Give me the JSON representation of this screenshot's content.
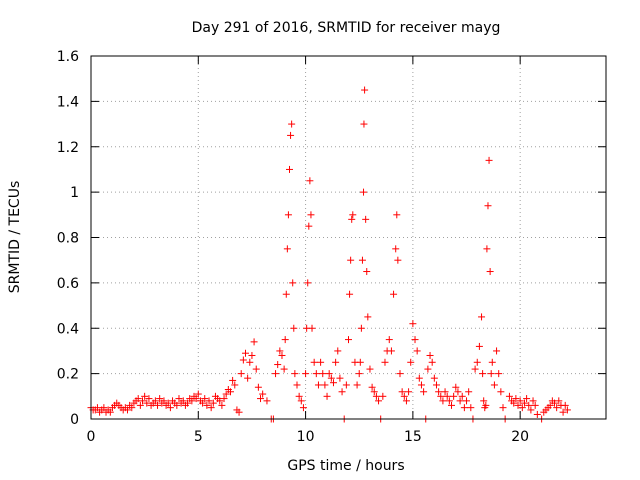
{
  "chart_data": {
    "type": "scatter",
    "title": "Day 291 of 2016, SRMTID for receiver mayg",
    "xlabel": "GPS time / hours",
    "ylabel": "SRMTID / TECUs",
    "xlim": [
      0,
      24
    ],
    "ylim": [
      0,
      1.6
    ],
    "xticks": [
      0,
      5,
      10,
      15,
      20
    ],
    "yticks": [
      0,
      0.2,
      0.4,
      0.6,
      0.8,
      1,
      1.2,
      1.4,
      1.6
    ],
    "xtick_labels": [
      "0",
      "5",
      "10",
      "15",
      "20"
    ],
    "ytick_labels": [
      "0",
      "0.2",
      "0.4",
      "0.6",
      "0.8",
      "1",
      "1.2",
      "1.4",
      "1.6"
    ],
    "grid": true,
    "marker": "+",
    "marker_color": "#ff0000",
    "series": [
      {
        "name": "SRMTID",
        "points": [
          [
            0.0,
            0.05
          ],
          [
            0.1,
            0.04
          ],
          [
            0.2,
            0.04
          ],
          [
            0.3,
            0.05
          ],
          [
            0.4,
            0.03
          ],
          [
            0.5,
            0.04
          ],
          [
            0.6,
            0.05
          ],
          [
            0.7,
            0.03
          ],
          [
            0.8,
            0.04
          ],
          [
            0.9,
            0.03
          ],
          [
            1.0,
            0.05
          ],
          [
            1.1,
            0.06
          ],
          [
            1.2,
            0.07
          ],
          [
            1.3,
            0.06
          ],
          [
            1.4,
            0.05
          ],
          [
            1.5,
            0.04
          ],
          [
            1.6,
            0.05
          ],
          [
            1.7,
            0.04
          ],
          [
            1.8,
            0.06
          ],
          [
            1.9,
            0.05
          ],
          [
            2.0,
            0.07
          ],
          [
            2.1,
            0.08
          ],
          [
            2.2,
            0.09
          ],
          [
            2.3,
            0.06
          ],
          [
            2.4,
            0.08
          ],
          [
            2.5,
            0.1
          ],
          [
            2.6,
            0.07
          ],
          [
            2.7,
            0.09
          ],
          [
            2.8,
            0.06
          ],
          [
            2.9,
            0.07
          ],
          [
            3.0,
            0.08
          ],
          [
            3.1,
            0.06
          ],
          [
            3.2,
            0.09
          ],
          [
            3.3,
            0.07
          ],
          [
            3.4,
            0.08
          ],
          [
            3.5,
            0.06
          ],
          [
            3.6,
            0.07
          ],
          [
            3.7,
            0.05
          ],
          [
            3.8,
            0.08
          ],
          [
            3.9,
            0.07
          ],
          [
            4.0,
            0.06
          ],
          [
            4.1,
            0.09
          ],
          [
            4.2,
            0.07
          ],
          [
            4.3,
            0.08
          ],
          [
            4.4,
            0.06
          ],
          [
            4.5,
            0.07
          ],
          [
            4.6,
            0.09
          ],
          [
            4.7,
            0.08
          ],
          [
            4.8,
            0.1
          ],
          [
            4.9,
            0.09
          ],
          [
            5.0,
            0.11
          ],
          [
            5.1,
            0.08
          ],
          [
            5.2,
            0.07
          ],
          [
            5.3,
            0.09
          ],
          [
            5.4,
            0.06
          ],
          [
            5.5,
            0.08
          ],
          [
            5.6,
            0.05
          ],
          [
            5.7,
            0.07
          ],
          [
            5.8,
            0.1
          ],
          [
            5.9,
            0.09
          ],
          [
            6.0,
            0.08
          ],
          [
            6.1,
            0.06
          ],
          [
            6.2,
            0.09
          ],
          [
            6.3,
            0.11
          ],
          [
            6.4,
            0.13
          ],
          [
            6.5,
            0.12
          ],
          [
            6.6,
            0.17
          ],
          [
            6.7,
            0.15
          ],
          [
            6.8,
            0.04
          ],
          [
            6.9,
            0.03
          ],
          [
            7.0,
            0.2
          ],
          [
            7.1,
            0.26
          ],
          [
            7.2,
            0.29
          ],
          [
            7.3,
            0.18
          ],
          [
            7.4,
            0.25
          ],
          [
            7.5,
            0.28
          ],
          [
            7.6,
            0.34
          ],
          [
            7.7,
            0.22
          ],
          [
            7.8,
            0.14
          ],
          [
            7.9,
            0.09
          ],
          [
            8.0,
            0.11
          ],
          [
            8.2,
            0.08
          ],
          [
            8.4,
            0.0
          ],
          [
            8.5,
            0.0
          ],
          [
            8.6,
            0.2
          ],
          [
            8.7,
            0.24
          ],
          [
            8.8,
            0.3
          ],
          [
            8.9,
            0.28
          ],
          [
            9.0,
            0.22
          ],
          [
            9.05,
            0.35
          ],
          [
            9.1,
            0.55
          ],
          [
            9.15,
            0.75
          ],
          [
            9.2,
            0.9
          ],
          [
            9.25,
            1.1
          ],
          [
            9.3,
            1.25
          ],
          [
            9.35,
            1.3
          ],
          [
            9.4,
            0.6
          ],
          [
            9.45,
            0.4
          ],
          [
            9.5,
            0.2
          ],
          [
            9.6,
            0.15
          ],
          [
            9.7,
            0.1
          ],
          [
            9.8,
            0.08
          ],
          [
            9.9,
            0.05
          ],
          [
            10.0,
            0.2
          ],
          [
            10.05,
            0.4
          ],
          [
            10.1,
            0.6
          ],
          [
            10.15,
            0.85
          ],
          [
            10.2,
            1.05
          ],
          [
            10.25,
            0.9
          ],
          [
            10.3,
            0.4
          ],
          [
            10.4,
            0.25
          ],
          [
            10.5,
            0.2
          ],
          [
            10.6,
            0.15
          ],
          [
            10.7,
            0.25
          ],
          [
            10.8,
            0.2
          ],
          [
            10.9,
            0.15
          ],
          [
            11.0,
            0.1
          ],
          [
            11.1,
            0.2
          ],
          [
            11.2,
            0.18
          ],
          [
            11.3,
            0.16
          ],
          [
            11.4,
            0.25
          ],
          [
            11.5,
            0.3
          ],
          [
            11.6,
            0.18
          ],
          [
            11.7,
            0.12
          ],
          [
            11.8,
            0.0
          ],
          [
            11.9,
            0.15
          ],
          [
            12.0,
            0.35
          ],
          [
            12.05,
            0.55
          ],
          [
            12.1,
            0.7
          ],
          [
            12.15,
            0.88
          ],
          [
            12.2,
            0.9
          ],
          [
            12.3,
            0.25
          ],
          [
            12.4,
            0.15
          ],
          [
            12.5,
            0.2
          ],
          [
            12.55,
            0.25
          ],
          [
            12.6,
            0.4
          ],
          [
            12.65,
            0.7
          ],
          [
            12.7,
            1.0
          ],
          [
            12.72,
            1.3
          ],
          [
            12.75,
            1.45
          ],
          [
            12.8,
            0.88
          ],
          [
            12.85,
            0.65
          ],
          [
            12.9,
            0.45
          ],
          [
            13.0,
            0.22
          ],
          [
            13.1,
            0.14
          ],
          [
            13.2,
            0.12
          ],
          [
            13.3,
            0.1
          ],
          [
            13.4,
            0.08
          ],
          [
            13.5,
            0.0
          ],
          [
            13.6,
            0.1
          ],
          [
            13.7,
            0.25
          ],
          [
            13.8,
            0.3
          ],
          [
            13.9,
            0.35
          ],
          [
            14.0,
            0.3
          ],
          [
            14.1,
            0.55
          ],
          [
            14.2,
            0.75
          ],
          [
            14.25,
            0.9
          ],
          [
            14.3,
            0.7
          ],
          [
            14.4,
            0.2
          ],
          [
            14.5,
            0.12
          ],
          [
            14.6,
            0.1
          ],
          [
            14.7,
            0.08
          ],
          [
            14.8,
            0.12
          ],
          [
            14.9,
            0.25
          ],
          [
            15.0,
            0.42
          ],
          [
            15.1,
            0.35
          ],
          [
            15.2,
            0.3
          ],
          [
            15.3,
            0.18
          ],
          [
            15.4,
            0.15
          ],
          [
            15.5,
            0.12
          ],
          [
            15.6,
            0.0
          ],
          [
            15.7,
            0.22
          ],
          [
            15.8,
            0.28
          ],
          [
            15.9,
            0.25
          ],
          [
            16.0,
            0.18
          ],
          [
            16.1,
            0.15
          ],
          [
            16.2,
            0.12
          ],
          [
            16.3,
            0.1
          ],
          [
            16.4,
            0.08
          ],
          [
            16.5,
            0.12
          ],
          [
            16.6,
            0.1
          ],
          [
            16.7,
            0.08
          ],
          [
            16.8,
            0.06
          ],
          [
            16.9,
            0.1
          ],
          [
            17.0,
            0.14
          ],
          [
            17.1,
            0.12
          ],
          [
            17.2,
            0.08
          ],
          [
            17.3,
            0.1
          ],
          [
            17.4,
            0.05
          ],
          [
            17.5,
            0.08
          ],
          [
            17.6,
            0.12
          ],
          [
            17.7,
            0.05
          ],
          [
            17.8,
            0.0
          ],
          [
            17.9,
            0.22
          ],
          [
            18.0,
            0.25
          ],
          [
            18.1,
            0.32
          ],
          [
            18.2,
            0.45
          ],
          [
            18.25,
            0.2
          ],
          [
            18.3,
            0.08
          ],
          [
            18.35,
            0.05
          ],
          [
            18.4,
            0.06
          ],
          [
            18.45,
            0.75
          ],
          [
            18.5,
            0.94
          ],
          [
            18.55,
            1.14
          ],
          [
            18.6,
            0.65
          ],
          [
            18.65,
            0.2
          ],
          [
            18.7,
            0.25
          ],
          [
            18.8,
            0.15
          ],
          [
            18.9,
            0.3
          ],
          [
            19.0,
            0.2
          ],
          [
            19.1,
            0.12
          ],
          [
            19.2,
            0.05
          ],
          [
            19.3,
            0.0
          ],
          [
            19.5,
            0.1
          ],
          [
            19.6,
            0.08
          ],
          [
            19.7,
            0.07
          ],
          [
            19.8,
            0.09
          ],
          [
            19.9,
            0.06
          ],
          [
            20.0,
            0.08
          ],
          [
            20.1,
            0.05
          ],
          [
            20.2,
            0.07
          ],
          [
            20.3,
            0.09
          ],
          [
            20.4,
            0.06
          ],
          [
            20.5,
            0.04
          ],
          [
            20.6,
            0.08
          ],
          [
            20.7,
            0.06
          ],
          [
            20.8,
            0.02
          ],
          [
            21.0,
            0.0
          ],
          [
            21.1,
            0.03
          ],
          [
            21.2,
            0.04
          ],
          [
            21.3,
            0.05
          ],
          [
            21.4,
            0.06
          ],
          [
            21.5,
            0.08
          ],
          [
            21.6,
            0.07
          ],
          [
            21.7,
            0.05
          ],
          [
            21.8,
            0.08
          ],
          [
            21.9,
            0.06
          ],
          [
            22.0,
            0.03
          ],
          [
            22.1,
            0.06
          ],
          [
            22.2,
            0.04
          ]
        ]
      }
    ]
  }
}
